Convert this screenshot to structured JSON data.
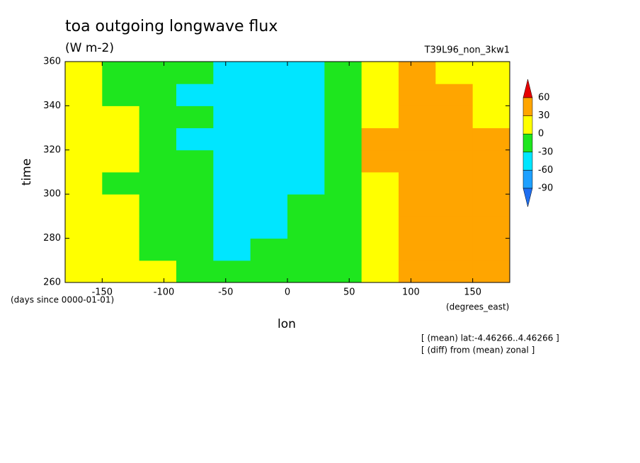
{
  "chart_data": {
    "type": "heatmap",
    "title": "toa outgoing longwave flux",
    "subtitle": "(W m-2)",
    "run_label": "T39L96_non_3kw1",
    "x_label": "lon",
    "y_label": "time",
    "x_units": "(degrees_east)",
    "y_units": "(days since 0000-01-01)",
    "notes": [
      "[ (mean) lat:-4.46266..4.46266 ]",
      "[ (diff) from (mean) zonal ]"
    ],
    "xlim": [
      -180,
      180
    ],
    "ylim": [
      260,
      360
    ],
    "xticks": [
      -150,
      -100,
      -50,
      0,
      50,
      100,
      150
    ],
    "yticks": [
      260,
      280,
      300,
      320,
      340,
      360
    ],
    "x": [
      -165,
      -135,
      -105,
      -75,
      -45,
      -15,
      15,
      45,
      75,
      105,
      135,
      165
    ],
    "y": [
      265,
      275,
      285,
      295,
      305,
      315,
      325,
      335,
      345,
      355
    ],
    "z": [
      [
        10,
        5,
        0,
        -20,
        -30,
        -25,
        -20,
        -10,
        20,
        40,
        40,
        30
      ],
      [
        5,
        10,
        -10,
        -25,
        -35,
        -30,
        -25,
        -15,
        15,
        40,
        45,
        35
      ],
      [
        15,
        0,
        -15,
        -30,
        -40,
        -35,
        -30,
        -20,
        10,
        35,
        40,
        30
      ],
      [
        10,
        5,
        -5,
        -25,
        -35,
        -40,
        -30,
        -20,
        20,
        40,
        40,
        35
      ],
      [
        5,
        -5,
        -20,
        -30,
        -45,
        -40,
        -35,
        -15,
        25,
        45,
        40,
        30
      ],
      [
        10,
        0,
        -10,
        -30,
        -40,
        -45,
        -35,
        -10,
        30,
        40,
        40,
        35
      ],
      [
        15,
        5,
        -15,
        -35,
        -45,
        -50,
        -40,
        -15,
        30,
        40,
        45,
        30
      ],
      [
        10,
        0,
        -20,
        -30,
        -40,
        -50,
        -45,
        -20,
        25,
        40,
        40,
        25
      ],
      [
        5,
        -5,
        -25,
        -35,
        -45,
        -55,
        -50,
        -25,
        20,
        35,
        35,
        20
      ],
      [
        0,
        -10,
        -20,
        -30,
        -40,
        -50,
        -45,
        -20,
        15,
        30,
        25,
        10
      ]
    ],
    "levels": [
      -90,
      -60,
      -30,
      0,
      30,
      60
    ],
    "colors": [
      "#1e6ef0",
      "#1ea0ff",
      "#00e6ff",
      "#1ee61e",
      "#ffff00",
      "#ffa500",
      "#e60000"
    ]
  }
}
